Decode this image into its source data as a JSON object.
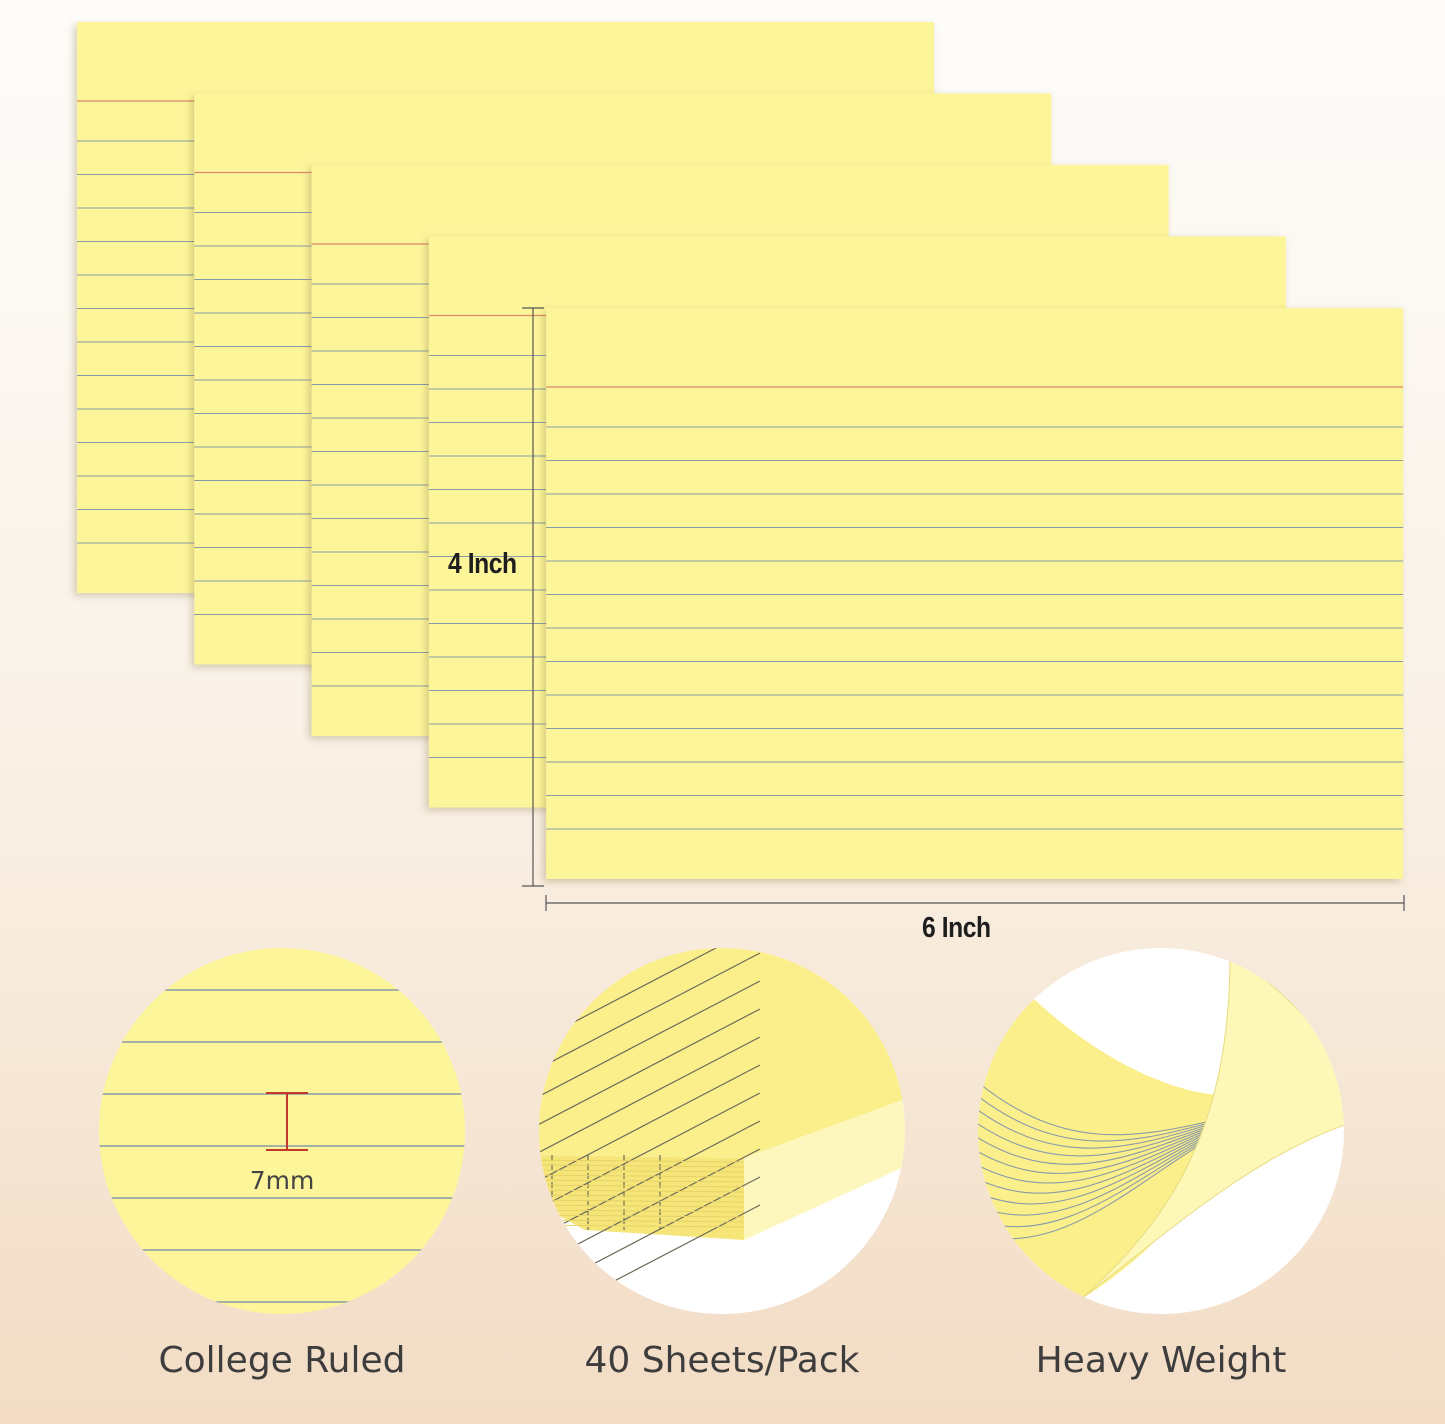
{
  "dimensions": {
    "height_label": "4 Inch",
    "width_label": "6 Inch"
  },
  "features": [
    {
      "label": "College Ruled",
      "detail": "7mm"
    },
    {
      "label": "40 Sheets/Pack"
    },
    {
      "label": "Heavy Weight"
    }
  ],
  "colors": {
    "card": "#fdf59a",
    "rule_line": "#8a9aa8",
    "margin_line": "#e0876a",
    "background_bottom": "#f2dcc4"
  }
}
